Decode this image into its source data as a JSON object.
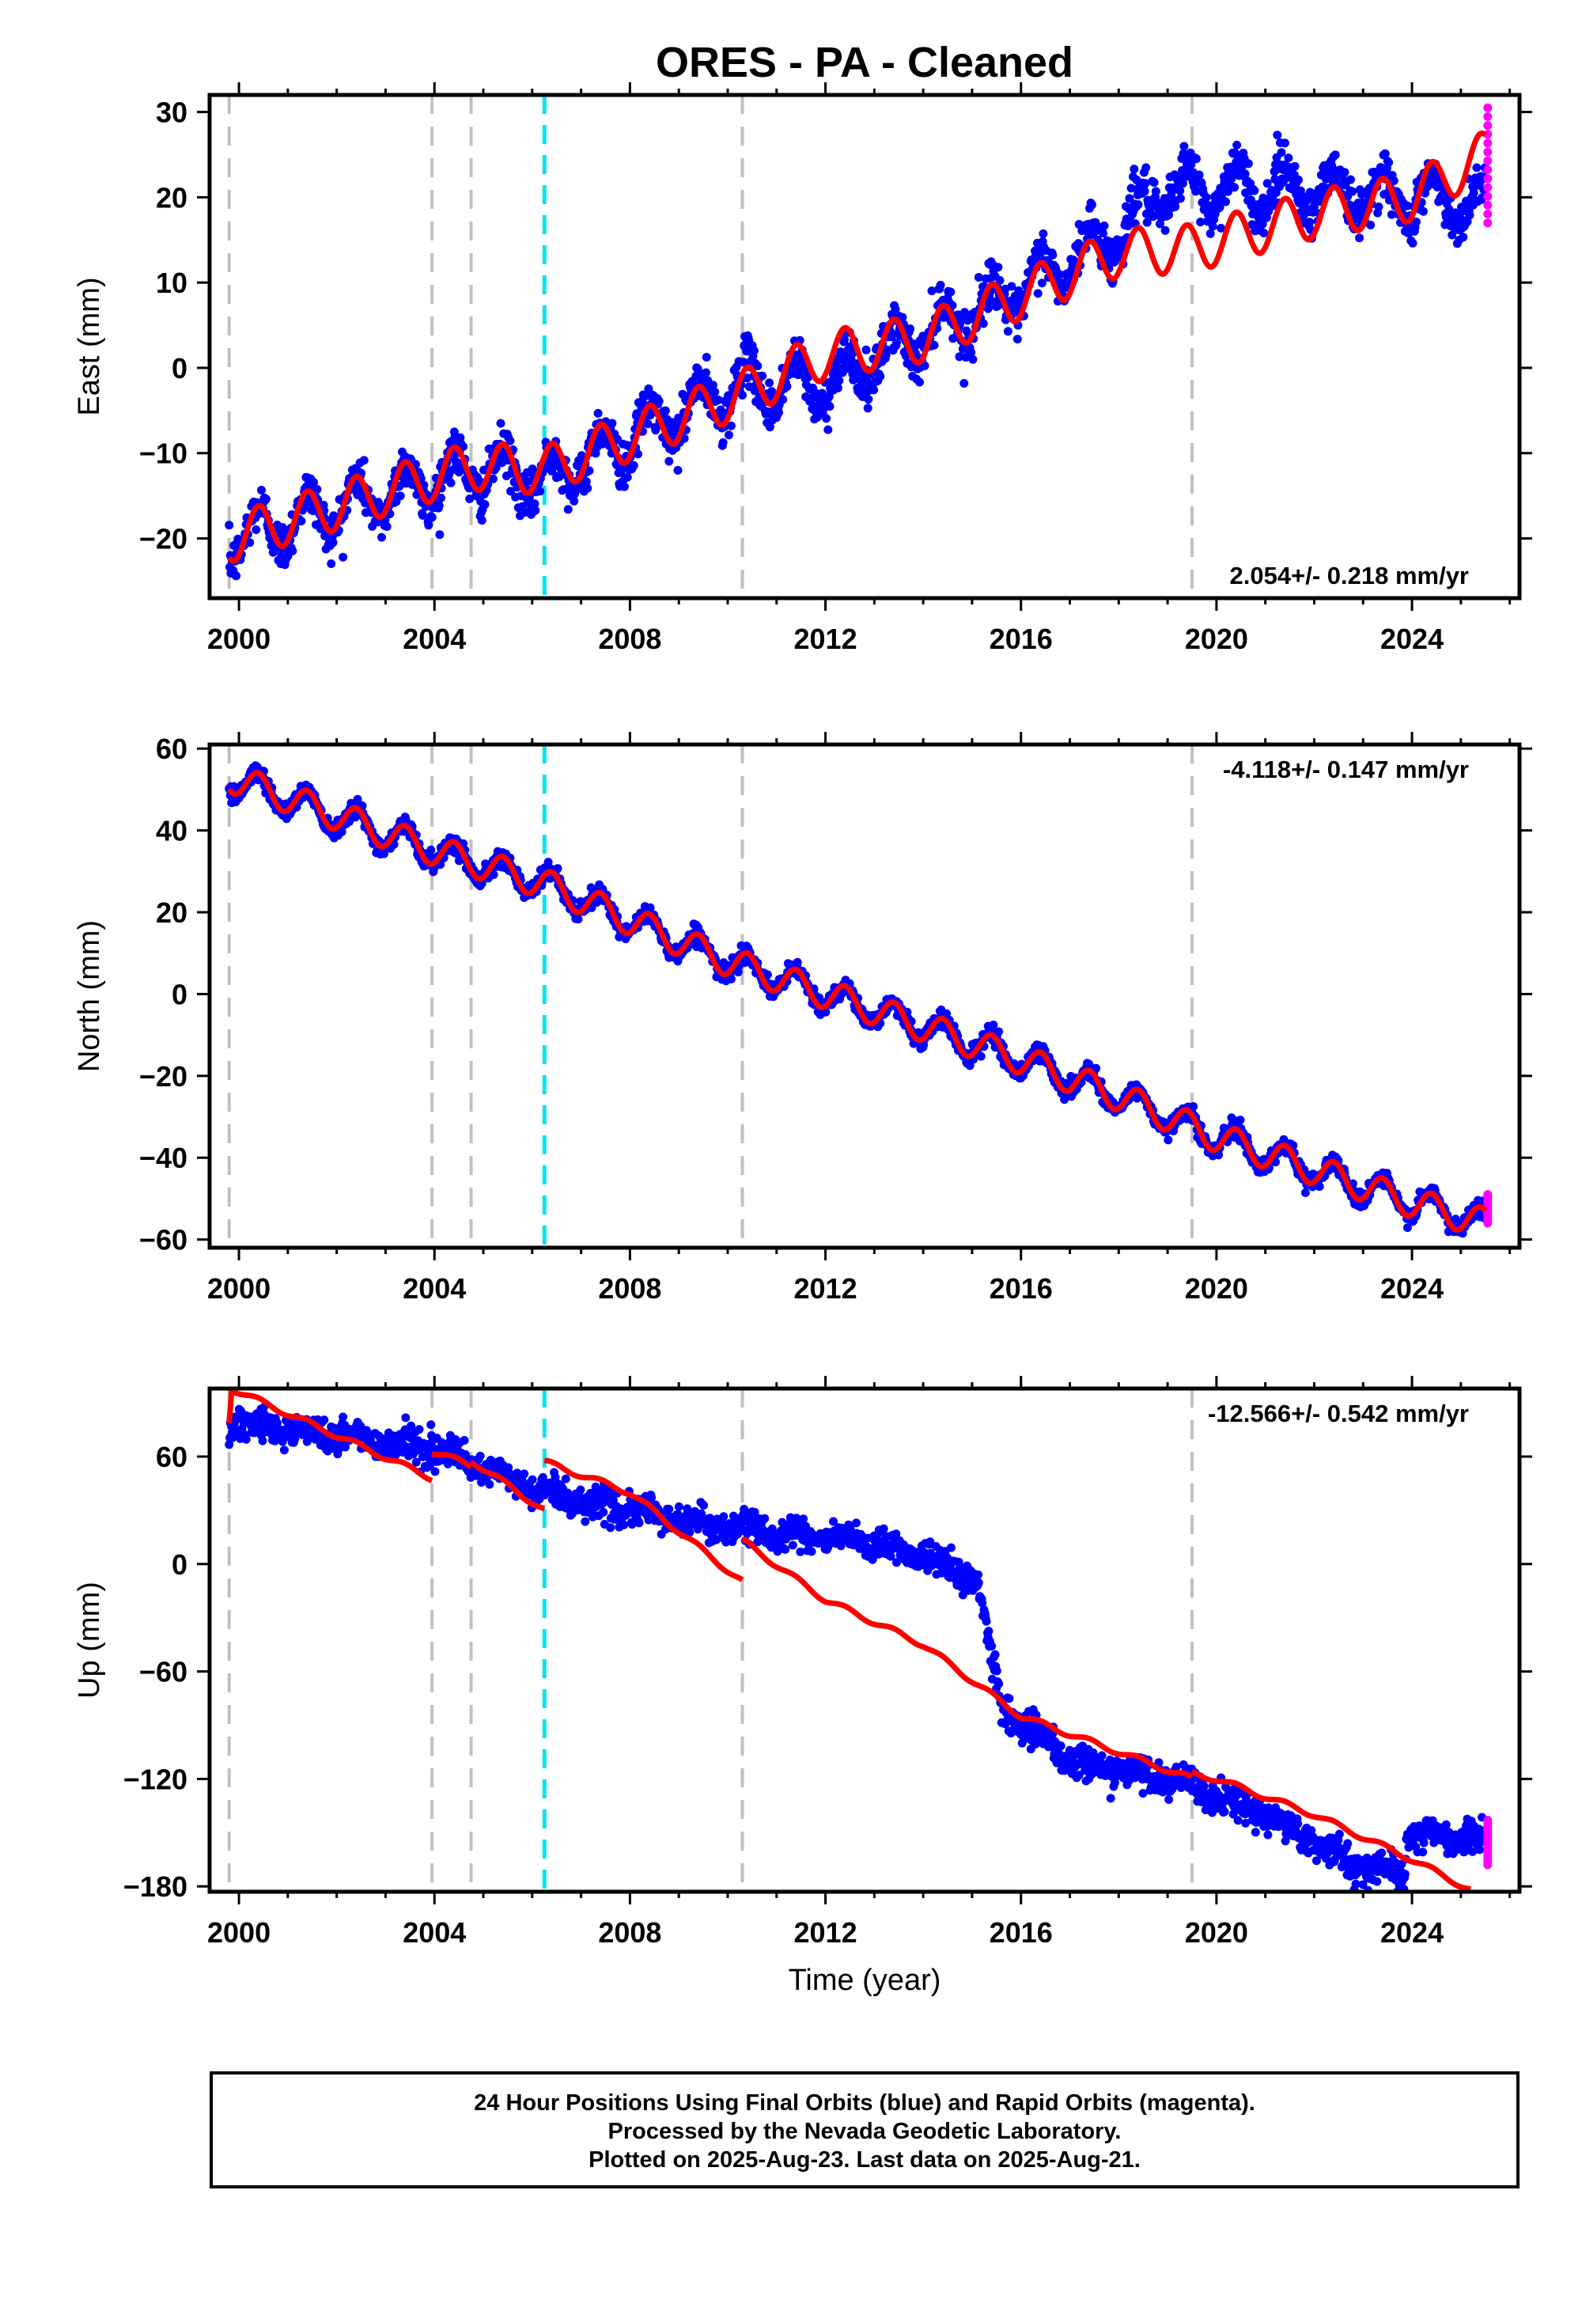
{
  "title": "ORES  - PA - Cleaned",
  "xlabel": "Time (year)",
  "footer": {
    "line1": "24 Hour Positions Using Final Orbits (blue) and Rapid Orbits (magenta).",
    "line2": "Processed by the Nevada Geodetic Laboratory.",
    "line3": "Plotted on 2025-Aug-23. Last data on 2025-Aug-21."
  },
  "colors": {
    "final": "#0000ff",
    "rapid": "#ff00ff",
    "model": "#ff0000",
    "event": "#c0c0c0",
    "equipment": "#00e5ee"
  },
  "chart_data": [
    {
      "type": "scatter",
      "name": "east",
      "ylabel": "East (mm)",
      "rate_label": "2.054+/- 0.218 mm/yr",
      "rate_position": "bottom-right",
      "xlim": [
        1999.4,
        2026.2
      ],
      "ylim": [
        -27,
        32
      ],
      "xticks": [
        2000,
        2004,
        2008,
        2012,
        2016,
        2020,
        2024
      ],
      "yticks": [
        -20,
        -10,
        0,
        10,
        20,
        30
      ],
      "grid": false,
      "event_lines": [
        1999.8,
        2003.95,
        2004.75,
        2010.3,
        2019.5
      ],
      "equipment_change": 2006.25,
      "model_knots": [
        [
          1999.8,
          -20
        ],
        [
          2004.75,
          -11.5
        ],
        [
          2006.25,
          -12
        ],
        [
          2010.3,
          -3
        ],
        [
          2012,
          1.5
        ],
        [
          2014,
          3.5
        ],
        [
          2016,
          8.5
        ],
        [
          2018,
          13.5
        ],
        [
          2019.5,
          14
        ],
        [
          2022,
          18
        ],
        [
          2024,
          20
        ],
        [
          2025.5,
          25
        ]
      ],
      "model_amplitude": 2.8,
      "data_knots": [
        [
          1999.8,
          -20
        ],
        [
          2004.75,
          -12
        ],
        [
          2006.25,
          -13
        ],
        [
          2010.3,
          -2
        ],
        [
          2012,
          -2
        ],
        [
          2014,
          4
        ],
        [
          2016,
          9
        ],
        [
          2018,
          16
        ],
        [
          2019,
          21
        ],
        [
          2020,
          21
        ],
        [
          2022,
          21
        ],
        [
          2025.5,
          19
        ]
      ],
      "data_amplitude": 2.8,
      "data_scatter": 2.3,
      "rapid": {
        "x": 2025.55,
        "y_range": [
          17,
          30.5
        ]
      }
    },
    {
      "type": "scatter",
      "name": "north",
      "ylabel": "North (mm)",
      "rate_label": "-4.118+/- 0.147 mm/yr",
      "rate_position": "top-right",
      "xlim": [
        1999.4,
        2026.2
      ],
      "ylim": [
        -62,
        61
      ],
      "xticks": [
        2000,
        2004,
        2008,
        2012,
        2016,
        2020,
        2024
      ],
      "yticks": [
        -60,
        -40,
        -20,
        0,
        20,
        40,
        60
      ],
      "grid": false,
      "event_lines": [
        1999.8,
        2003.95,
        2004.75,
        2010.3,
        2019.5
      ],
      "equipment_change": 2006.25,
      "model_knots": [
        [
          1999.8,
          53
        ],
        [
          2004,
          35
        ],
        [
          2006.25,
          27
        ],
        [
          2008,
          18
        ],
        [
          2010,
          8
        ],
        [
          2012,
          0
        ],
        [
          2014,
          -8
        ],
        [
          2016,
          -16
        ],
        [
          2018,
          -25
        ],
        [
          2020,
          -35
        ],
        [
          2022,
          -43
        ],
        [
          2024,
          -51
        ],
        [
          2025.5,
          -56
        ]
      ],
      "model_amplitude": 3.6,
      "data_knots": [
        [
          1999.8,
          53
        ],
        [
          2004,
          35
        ],
        [
          2006.25,
          27
        ],
        [
          2008,
          18
        ],
        [
          2010,
          8
        ],
        [
          2012,
          0
        ],
        [
          2014,
          -8
        ],
        [
          2016,
          -16
        ],
        [
          2018,
          -25
        ],
        [
          2020,
          -35
        ],
        [
          2022,
          -43
        ],
        [
          2024,
          -51
        ],
        [
          2025.5,
          -56
        ]
      ],
      "data_amplitude": 3.6,
      "data_scatter": 1.8,
      "rapid": {
        "x": 2025.55,
        "y_range": [
          -56,
          -49
        ]
      }
    },
    {
      "type": "scatter",
      "name": "up",
      "ylabel": "Up (mm)",
      "rate_label": "-12.566+/- 0.542 mm/yr",
      "rate_position": "top-right",
      "xlim": [
        1999.4,
        2026.2
      ],
      "ylim": [
        -183,
        98
      ],
      "xticks": [
        2000,
        2004,
        2008,
        2012,
        2016,
        2020,
        2024
      ],
      "yticks": [
        -180,
        -120,
        -60,
        0,
        60
      ],
      "grid": false,
      "event_lines": [
        1999.8,
        2003.95,
        2004.75,
        2010.3,
        2019.5
      ],
      "equipment_change": 2006.25,
      "model_segments": [
        [
          [
            1999.8,
            80
          ],
          [
            1999.85,
            98
          ],
          [
            2003.95,
            48
          ]
        ],
        [
          [
            2003.95,
            63
          ],
          [
            2004.75,
            55
          ]
        ],
        [
          [
            2004.75,
            58
          ],
          [
            2006.25,
            30
          ]
        ],
        [
          [
            2006.25,
            57
          ],
          [
            2008,
            40
          ],
          [
            2010.3,
            -10
          ]
        ],
        [
          [
            2010.3,
            13
          ],
          [
            2012,
            -20
          ],
          [
            2014,
            -45
          ],
          [
            2016,
            -85
          ],
          [
            2018,
            -105
          ],
          [
            2019.5,
            -120
          ]
        ],
        [
          [
            2019.5,
            -117
          ],
          [
            2020,
            -120
          ],
          [
            2022,
            -140
          ],
          [
            2024,
            -165
          ],
          [
            2025.2,
            -182
          ]
        ]
      ],
      "model_amplitude": 1.5,
      "data_knots": [
        [
          1999.8,
          80
        ],
        [
          2003.95,
          65
        ],
        [
          2004.75,
          55
        ],
        [
          2006.25,
          40
        ],
        [
          2008,
          30
        ],
        [
          2010,
          20
        ],
        [
          2012,
          15
        ],
        [
          2014,
          5
        ],
        [
          2015.1,
          -10
        ],
        [
          2015.6,
          -80
        ],
        [
          2017,
          -110
        ],
        [
          2019,
          -120
        ],
        [
          2021,
          -140
        ],
        [
          2023,
          -170
        ],
        [
          2023.85,
          -172
        ],
        [
          2023.9,
          -150
        ],
        [
          2025.5,
          -155
        ]
      ],
      "data_amplitude": 2.5,
      "data_scatter": 7,
      "rapid": {
        "x": 2025.55,
        "y_range": [
          -168,
          -143
        ]
      }
    }
  ]
}
